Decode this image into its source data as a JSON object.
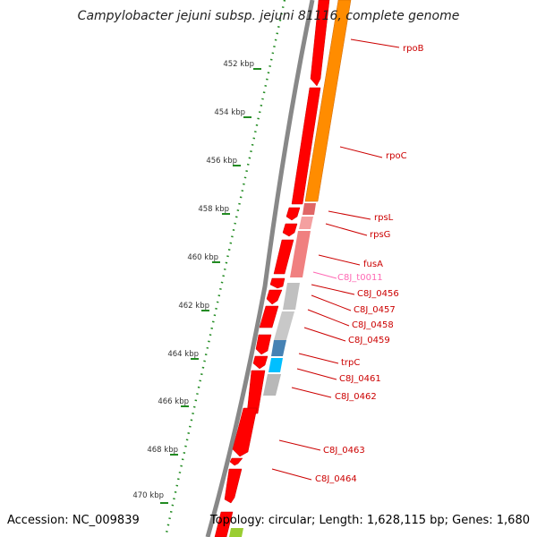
{
  "title": "Campylobacter jejuni subsp. jejuni 81116, complete genome",
  "accession": "Accession: NC_009839",
  "summary": "Topology: circular; Length: 1,628,115 bp; Genes: 1,680",
  "colors": {
    "backbone": "#888888",
    "cds": "#ff0000",
    "gene_band_orange": "#ff8c00",
    "gene_band_pink": "#f08080",
    "gene_band_gray": "#c0c0c0",
    "gene_band_blue": "#4682b4",
    "gene_band_cyan": "#00bfff",
    "ruler": "#228b22",
    "label": "#cc0000",
    "trna_label": "#ff69b4"
  },
  "ruler_labels": [
    "452 kbp",
    "454 kbp",
    "456 kbp",
    "458 kbp",
    "460 kbp",
    "462 kbp",
    "464 kbp",
    "466 kbp",
    "468 kbp",
    "470 kbp"
  ],
  "gene_labels": [
    {
      "text": "rpoB",
      "kind": "cds"
    },
    {
      "text": "rpoC",
      "kind": "cds"
    },
    {
      "text": "rpsL",
      "kind": "cds"
    },
    {
      "text": "rpsG",
      "kind": "cds"
    },
    {
      "text": "fusA",
      "kind": "cds"
    },
    {
      "text": "C8J_t0011",
      "kind": "trna"
    },
    {
      "text": "C8J_0456",
      "kind": "cds"
    },
    {
      "text": "C8J_0457",
      "kind": "cds"
    },
    {
      "text": "C8J_0458",
      "kind": "cds"
    },
    {
      "text": "C8J_0459",
      "kind": "cds"
    },
    {
      "text": "trpC",
      "kind": "cds"
    },
    {
      "text": "C8J_0461",
      "kind": "cds"
    },
    {
      "text": "C8J_0462",
      "kind": "cds"
    },
    {
      "text": "C8J_0463",
      "kind": "cds"
    },
    {
      "text": "C8J_0464",
      "kind": "cds"
    }
  ]
}
